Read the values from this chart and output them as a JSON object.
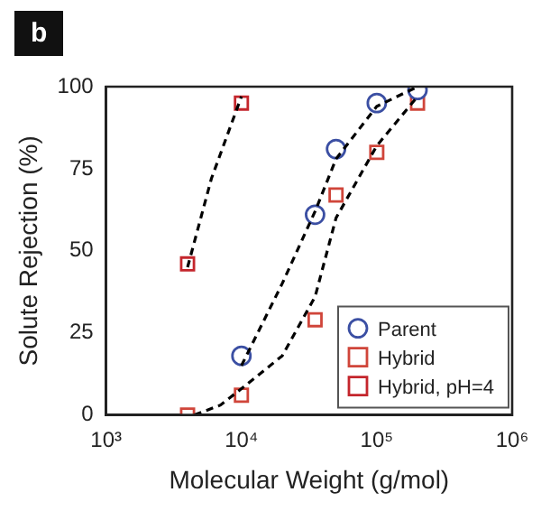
{
  "chart_data": {
    "type": "scatter",
    "xlabel": "Molecular Weight (g/mol)",
    "ylabel": "Solute Rejection (%)",
    "annotations": [
      "b"
    ],
    "log": "x",
    "xlim": [
      1000,
      1000000
    ],
    "xticks": [
      {
        "value": 1000,
        "label": "10³"
      },
      {
        "value": 10000,
        "label": "10⁴"
      },
      {
        "value": 100000,
        "label": "10⁵"
      },
      {
        "value": 1000000,
        "label": "10⁶"
      }
    ],
    "ylim": [
      0,
      100
    ],
    "yticks": [
      0,
      25,
      50,
      75,
      100
    ],
    "grid": false,
    "legend": "bottom right",
    "series": [
      {
        "type": "line",
        "color": "#000000",
        "line_style": "dashed",
        "marker": "none",
        "x": [
          10000,
          20000,
          35000,
          50000,
          100000,
          200000
        ],
        "values": [
          15,
          40,
          62,
          78,
          94,
          100
        ]
      },
      {
        "type": "line",
        "color": "#000000",
        "line_style": "dashed",
        "marker": "none",
        "x": [
          4500,
          7000,
          10000,
          20000,
          35000,
          50000,
          100000,
          200000
        ],
        "values": [
          0,
          3,
          8,
          18,
          36,
          60,
          82,
          97
        ]
      },
      {
        "type": "line",
        "color": "#000000",
        "line_style": "dashed",
        "marker": "none",
        "x": [
          4000,
          6000,
          10000
        ],
        "values": [
          45,
          72,
          97
        ]
      },
      {
        "name": "Parent",
        "color": "#3b4fa3",
        "marker": "circle",
        "x": [
          10000,
          35000,
          50000,
          100000,
          200000
        ],
        "values": [
          18,
          61,
          81,
          95,
          99
        ]
      },
      {
        "name": "Hybrid",
        "color": "#d0453a",
        "marker": "square",
        "x": [
          4000,
          10000,
          35000,
          50000,
          100000,
          200000
        ],
        "values": [
          0,
          6,
          29,
          67,
          80,
          95
        ]
      },
      {
        "name": "Hybrid, pH=4",
        "color": "#c4262c",
        "marker": "square",
        "x": [
          4000,
          10000
        ],
        "values": [
          46,
          95
        ]
      }
    ]
  }
}
